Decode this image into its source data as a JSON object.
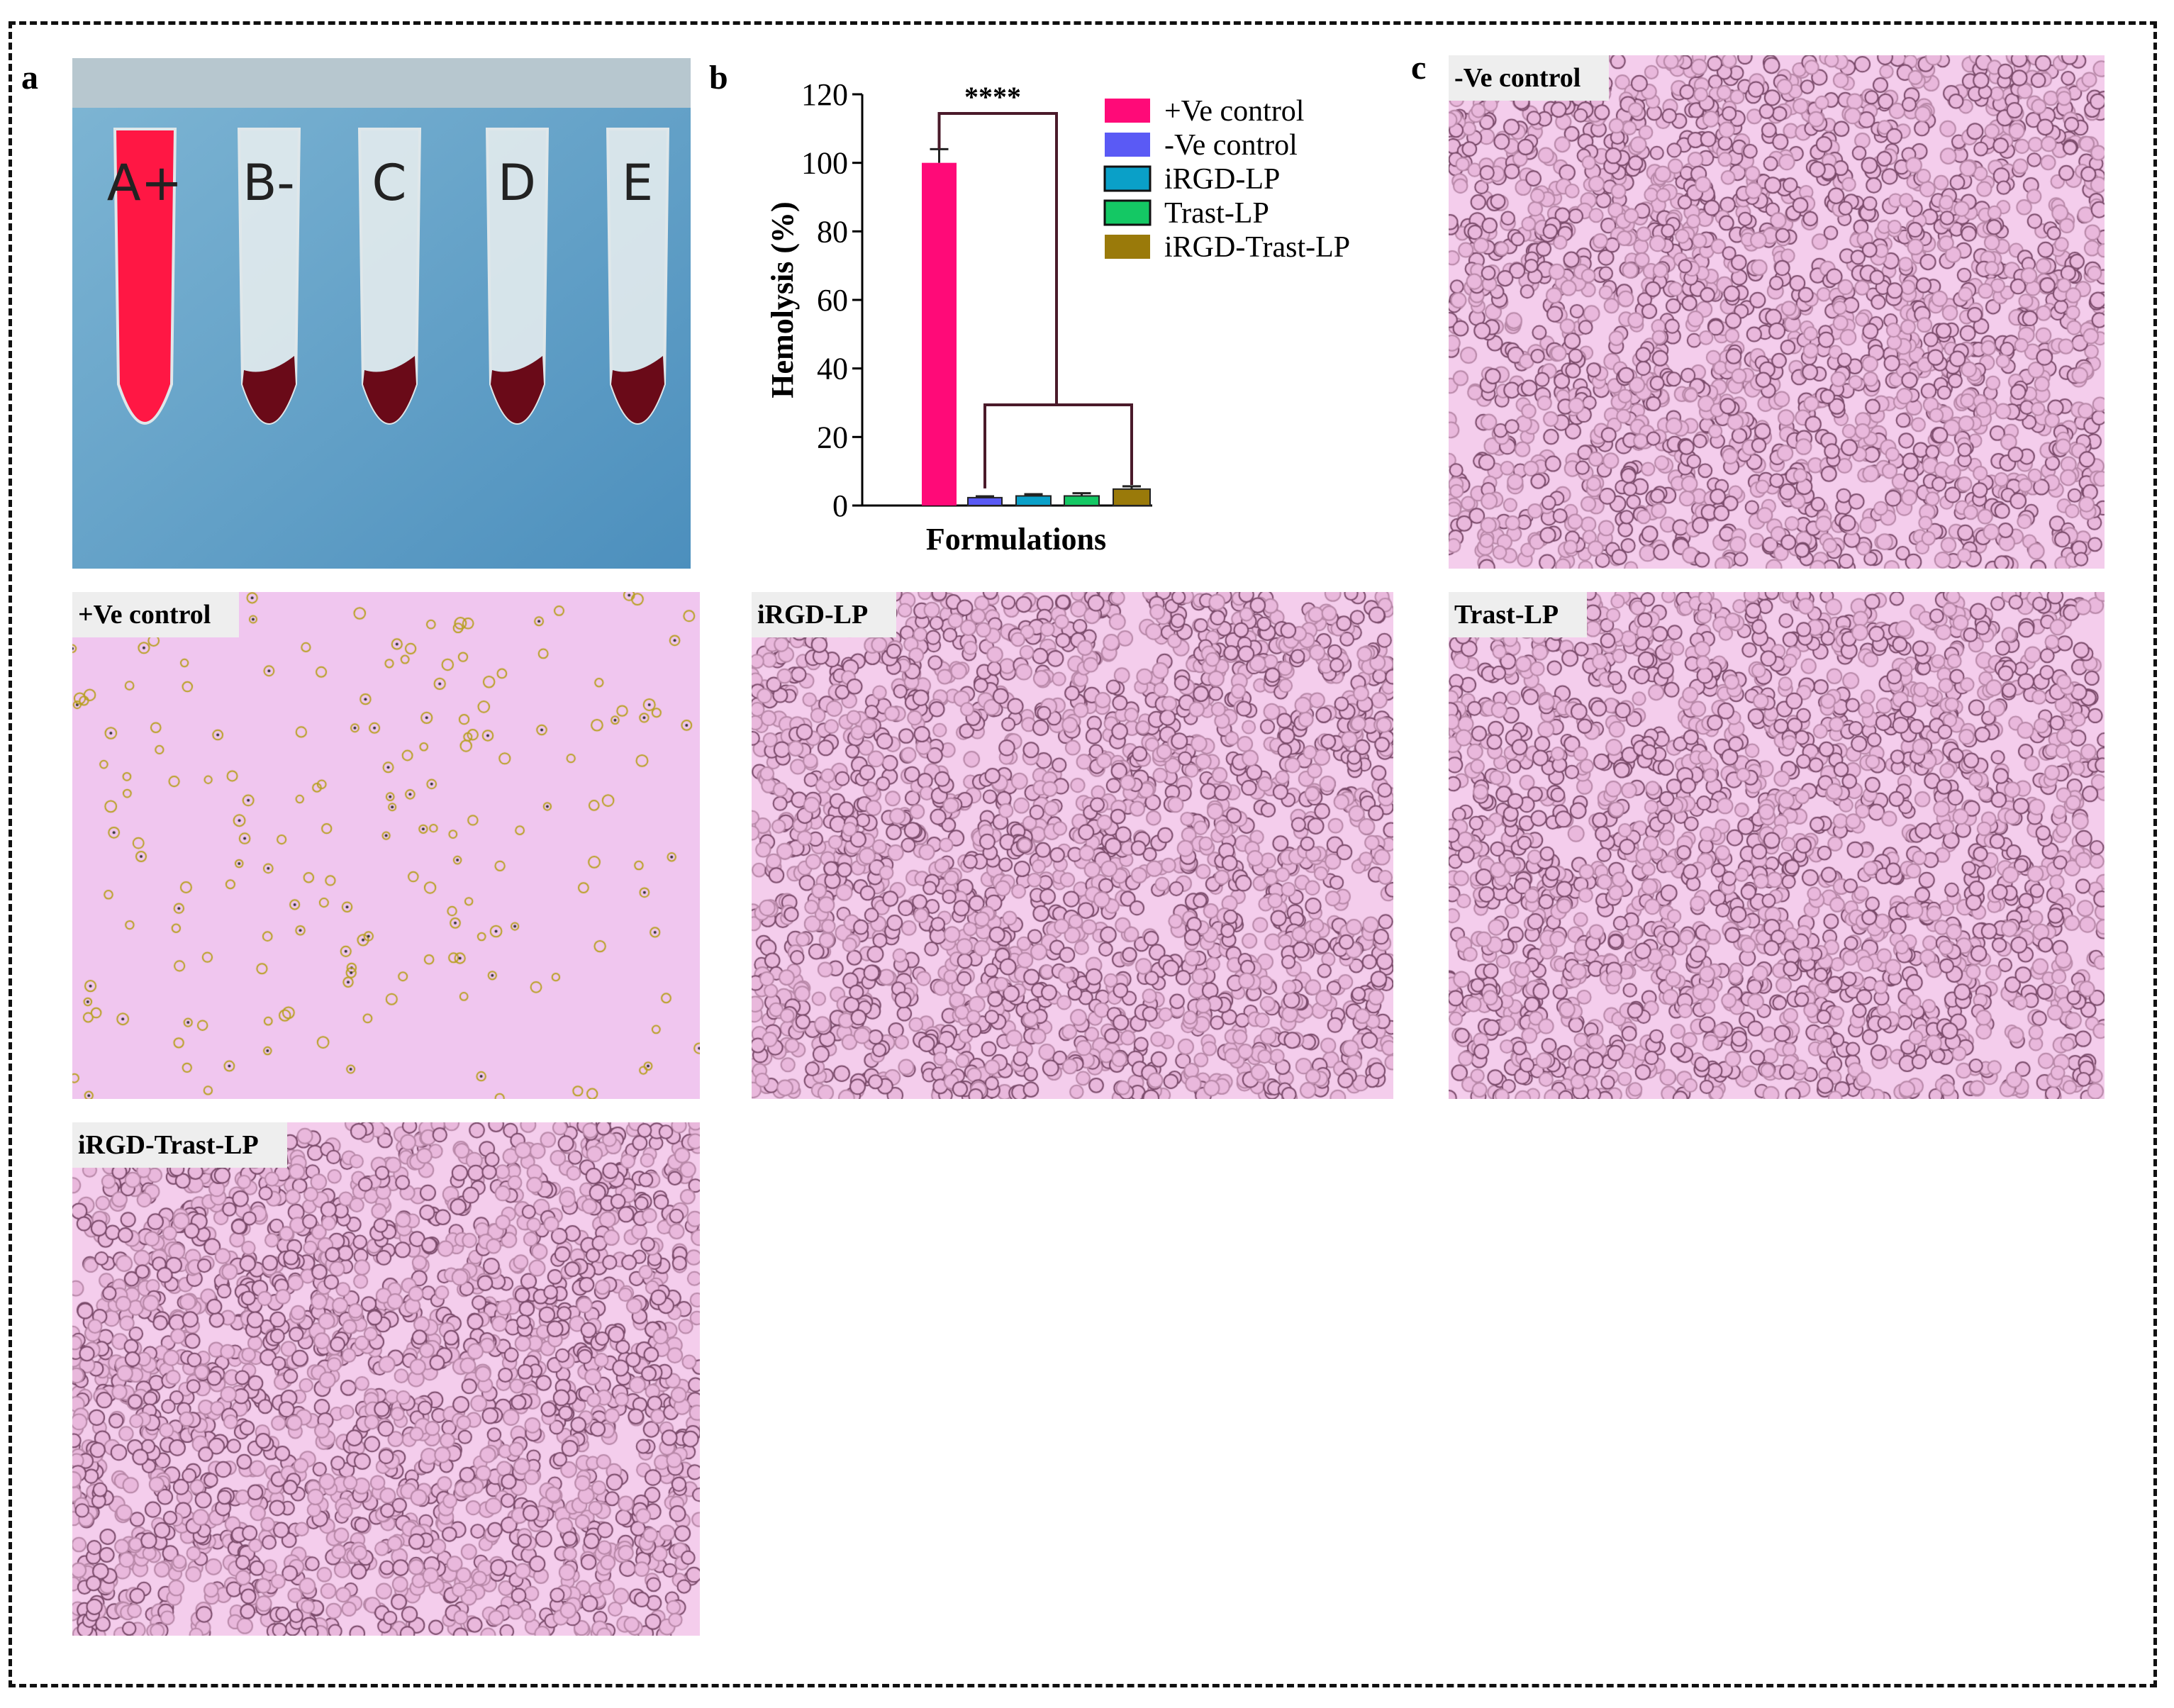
{
  "panels": {
    "a": "a",
    "b": "b",
    "c": "c"
  },
  "photo": {
    "tube_labels": [
      "A+",
      "B-",
      "C",
      "D",
      "E"
    ]
  },
  "micrographs": [
    {
      "label": "-Ve control",
      "type": "intact"
    },
    {
      "label": "+Ve control",
      "type": "lysed"
    },
    {
      "label": "iRGD-LP",
      "type": "intact"
    },
    {
      "label": "Trast-LP",
      "type": "intact"
    },
    {
      "label": "iRGD-Trast-LP",
      "type": "intact"
    }
  ],
  "chart_data": {
    "type": "bar",
    "title": "",
    "xlabel": "Formulations",
    "ylabel": "Hemolysis (%)",
    "ylim": [
      0,
      120
    ],
    "yticks": [
      "0",
      "20",
      "40",
      "60",
      "80",
      "100",
      "120"
    ],
    "categories": [
      "+Ve control",
      "-Ve control",
      "iRGD-LP",
      "Trast-LP",
      "iRGD-Trast-LP"
    ],
    "values": [
      100,
      2.3,
      2.8,
      2.8,
      4.8
    ],
    "errors": [
      4,
      0.4,
      0.5,
      0.8,
      0.8
    ],
    "colors": [
      "#ff0a78",
      "#5a5af5",
      "#0aa0c8",
      "#14c864",
      "#9a7a0a"
    ],
    "legend": "top-right",
    "grid": false,
    "significance": "****"
  }
}
